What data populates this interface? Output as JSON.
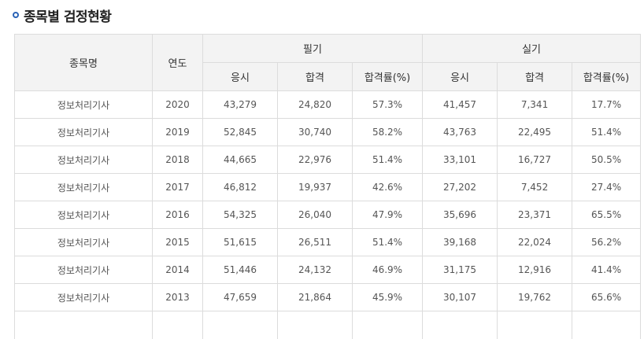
{
  "title": "종목별 검정현황",
  "headers": {
    "name": "종목명",
    "year": "연도",
    "written": "필기",
    "practical": "실기",
    "applicants": "응시",
    "passed": "합격",
    "rate": "합격률(%)"
  },
  "rows": [
    {
      "name": "정보처리기사",
      "year": "2020",
      "w_app": "43,279",
      "w_pass": "24,820",
      "w_rate": "57.3%",
      "p_app": "41,457",
      "p_pass": "7,341",
      "p_rate": "17.7%"
    },
    {
      "name": "정보처리기사",
      "year": "2019",
      "w_app": "52,845",
      "w_pass": "30,740",
      "w_rate": "58.2%",
      "p_app": "43,763",
      "p_pass": "22,495",
      "p_rate": "51.4%"
    },
    {
      "name": "정보처리기사",
      "year": "2018",
      "w_app": "44,665",
      "w_pass": "22,976",
      "w_rate": "51.4%",
      "p_app": "33,101",
      "p_pass": "16,727",
      "p_rate": "50.5%"
    },
    {
      "name": "정보처리기사",
      "year": "2017",
      "w_app": "46,812",
      "w_pass": "19,937",
      "w_rate": "42.6%",
      "p_app": "27,202",
      "p_pass": "7,452",
      "p_rate": "27.4%"
    },
    {
      "name": "정보처리기사",
      "year": "2016",
      "w_app": "54,325",
      "w_pass": "26,040",
      "w_rate": "47.9%",
      "p_app": "35,696",
      "p_pass": "23,371",
      "p_rate": "65.5%"
    },
    {
      "name": "정보처리기사",
      "year": "2015",
      "w_app": "51,615",
      "w_pass": "26,511",
      "w_rate": "51.4%",
      "p_app": "39,168",
      "p_pass": "22,024",
      "p_rate": "56.2%"
    },
    {
      "name": "정보처리기사",
      "year": "2014",
      "w_app": "51,446",
      "w_pass": "24,132",
      "w_rate": "46.9%",
      "p_app": "31,175",
      "p_pass": "12,916",
      "p_rate": "41.4%"
    },
    {
      "name": "정보처리기사",
      "year": "2013",
      "w_app": "47,659",
      "w_pass": "21,864",
      "w_rate": "45.9%",
      "p_app": "30,107",
      "p_pass": "19,762",
      "p_rate": "65.6%"
    }
  ],
  "colors": {
    "accent": "#2b63b6",
    "header_bg": "#f3f3f3",
    "border": "#dcdcdc"
  }
}
